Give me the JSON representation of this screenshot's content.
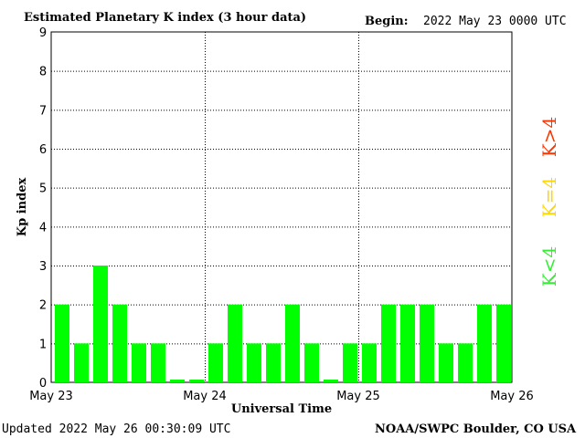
{
  "header": {
    "title": "Estimated Planetary K index (3 hour data)",
    "begin_label": "Begin:",
    "begin_value": "2022 May 23 0000 UTC"
  },
  "footer": {
    "updated": "Updated 2022 May 26 00:30:09 UTC",
    "source": "NOAA/SWPC Boulder, CO USA"
  },
  "legend": {
    "high": "K>4",
    "equal": "K=4",
    "low": "K<4",
    "colors": {
      "high": "#ff3300",
      "equal": "#ffd700",
      "low": "#33ee33"
    }
  },
  "chart_data": {
    "type": "bar",
    "title": "Estimated Planetary K index (3 hour data)",
    "xlabel": "Universal Time",
    "ylabel": "Kp index",
    "ylim": [
      0,
      9
    ],
    "yticks": [
      "0",
      "1",
      "2",
      "3",
      "4",
      "5",
      "6",
      "7",
      "8",
      "9"
    ],
    "xticks": [
      "May 23",
      "May 24",
      "May 25",
      "May 26"
    ],
    "grid": true,
    "values": [
      2,
      1,
      3,
      2,
      1,
      1,
      0,
      0,
      1,
      2,
      1,
      1,
      2,
      1,
      0,
      1,
      1,
      2,
      2,
      2,
      1,
      1,
      2,
      2
    ],
    "bar_color": "#00ff00"
  }
}
